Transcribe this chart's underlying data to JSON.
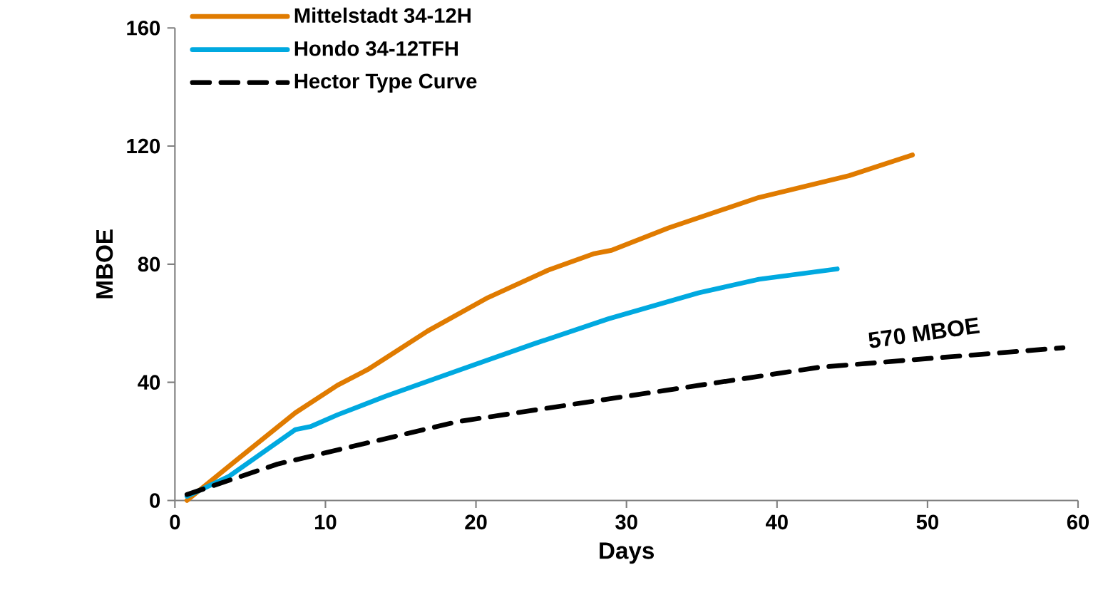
{
  "chart_data": {
    "type": "line",
    "xlabel": "Days",
    "ylabel": "MBOE",
    "xlim": [
      0,
      60
    ],
    "xticks": [
      0,
      10,
      20,
      30,
      40,
      50,
      60
    ],
    "ylim": [
      0,
      160
    ],
    "yticks": [
      0,
      40,
      80,
      120,
      160
    ],
    "legend": "top left",
    "annotations": [
      {
        "text": "570 MBOE",
        "x": 50,
        "y": 48
      }
    ],
    "series": [
      {
        "name": "Mittelstadt 34-12H",
        "color": "#e07b00",
        "line_style": "solid",
        "x": [
          0.8,
          4,
          8,
          10.8,
          12.8,
          14,
          16.8,
          20.8,
          24.8,
          27.8,
          29,
          32.8,
          38.8,
          44.8,
          49
        ],
        "values": [
          0,
          13.3,
          29.7,
          39,
          44.3,
          48.2,
          57.4,
          68.7,
          78,
          83.5,
          84.7,
          92.3,
          102.6,
          110,
          117
        ]
      },
      {
        "name": "Hondo 34-12TFH",
        "color": "#00a9e0",
        "line_style": "solid",
        "x": [
          0.8,
          3.6,
          6,
          8,
          9,
          10.8,
          14,
          18.8,
          24,
          28.8,
          34.8,
          38.8,
          44
        ],
        "values": [
          1.4,
          8.2,
          16.8,
          24,
          25,
          29,
          35.3,
          44,
          53.3,
          61.5,
          70.3,
          74.9,
          78.4
        ]
      },
      {
        "name": "Hector Type Curve",
        "color": "#000000",
        "line_style": "dashed",
        "x": [
          0.8,
          6.8,
          18.8,
          30.8,
          42.8,
          59
        ],
        "values": [
          2,
          12.3,
          26.7,
          35.9,
          45.1,
          51.7
        ]
      }
    ]
  }
}
